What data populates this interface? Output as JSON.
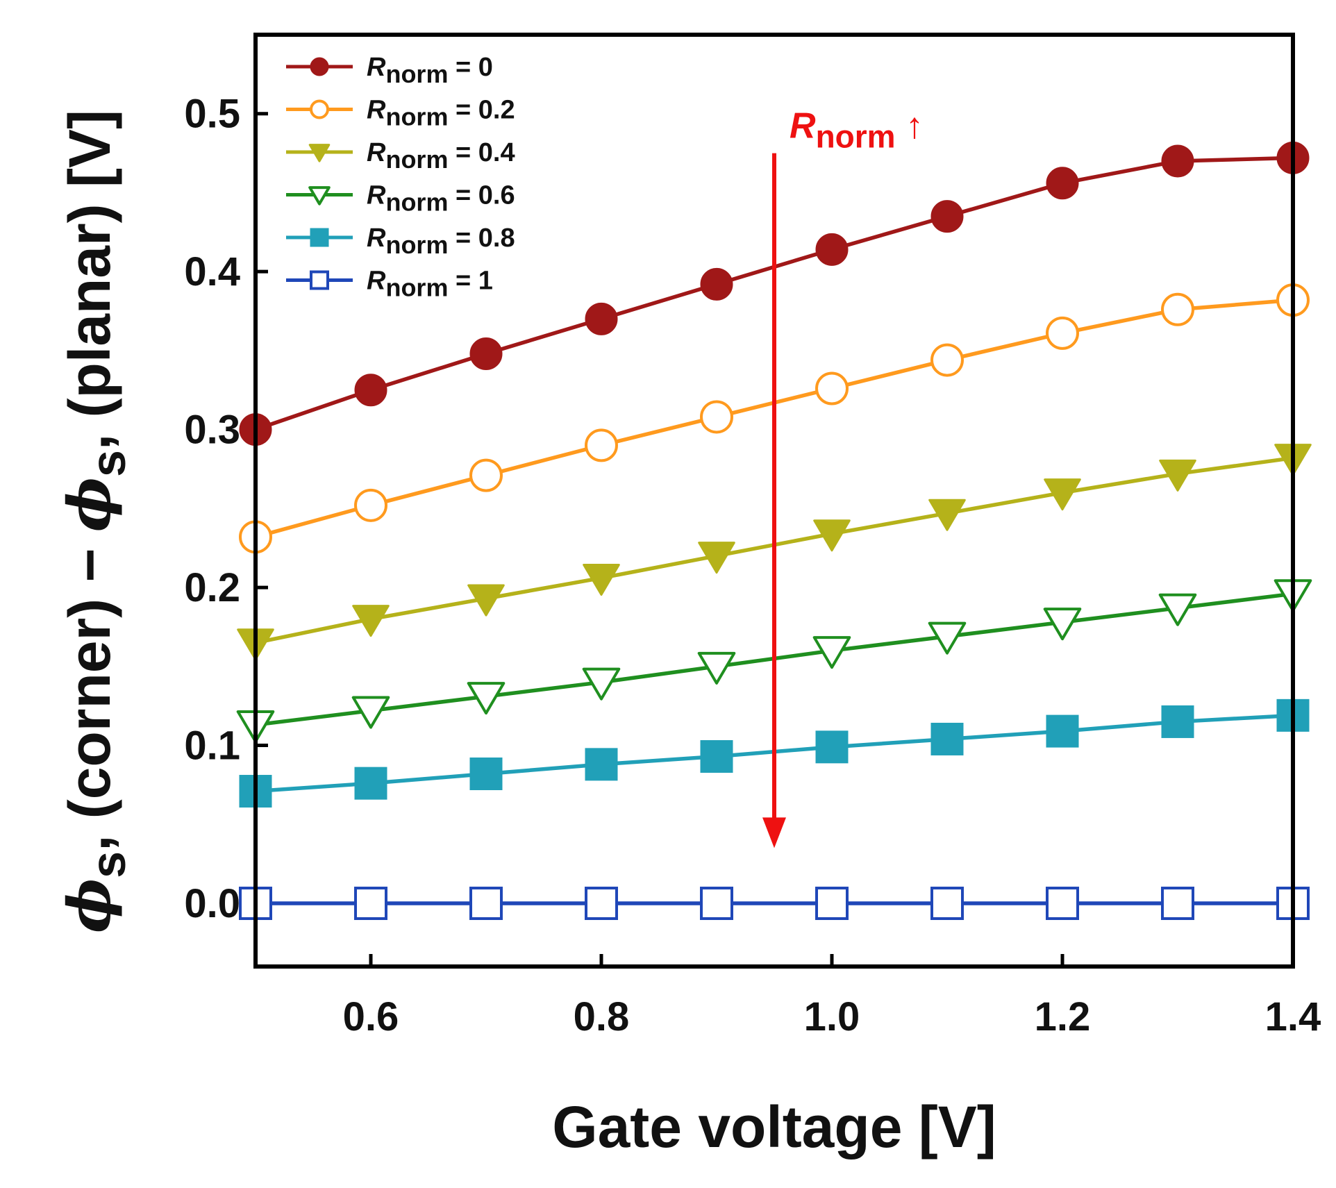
{
  "chart_data": {
    "type": "line",
    "title": "",
    "xlabel": "Gate voltage [V]",
    "ylabel": {
      "phi": "ϕ",
      "s1": "s",
      "part1": ", (corner) − ",
      "phi2": "ϕ",
      "s2": "s",
      "part2": ", (planar) [V]"
    },
    "xlim": [
      0.5,
      1.4
    ],
    "ylim": [
      -0.04,
      0.55
    ],
    "x_ticks": [
      "0.6",
      "0.8",
      "1.0",
      "1.2",
      "1.4"
    ],
    "x_tick_values": [
      0.6,
      0.8,
      1.0,
      1.2,
      1.4
    ],
    "y_ticks": [
      "0.0",
      "0.1",
      "0.2",
      "0.3",
      "0.4",
      "0.5"
    ],
    "y_tick_values": [
      0.0,
      0.1,
      0.2,
      0.3,
      0.4,
      0.5
    ],
    "x": [
      0.5,
      0.6,
      0.7,
      0.8,
      0.9,
      1.0,
      1.1,
      1.2,
      1.3,
      1.4
    ],
    "legend_position": "top-left",
    "series": [
      {
        "name_italic": "R",
        "name_sub": "norm",
        "name_rest": " = 0",
        "color": "#a01818",
        "marker": "circle",
        "filled": true,
        "values": [
          0.3,
          0.325,
          0.348,
          0.37,
          0.392,
          0.414,
          0.435,
          0.456,
          0.47,
          0.472
        ]
      },
      {
        "name_italic": "R",
        "name_sub": "norm",
        "name_rest": " = 0.2",
        "color": "#ff9a1e",
        "marker": "circle",
        "filled": false,
        "values": [
          0.232,
          0.252,
          0.271,
          0.29,
          0.308,
          0.326,
          0.344,
          0.361,
          0.376,
          0.382
        ]
      },
      {
        "name_italic": "R",
        "name_sub": "norm",
        "name_rest": " = 0.4",
        "color": "#b5b21a",
        "marker": "triangle-down",
        "filled": true,
        "values": [
          0.165,
          0.18,
          0.193,
          0.206,
          0.22,
          0.234,
          0.247,
          0.26,
          0.272,
          0.282
        ]
      },
      {
        "name_italic": "R",
        "name_sub": "norm",
        "name_rest": " = 0.6",
        "color": "#1f8f1f",
        "marker": "triangle-down",
        "filled": false,
        "values": [
          0.113,
          0.122,
          0.131,
          0.14,
          0.15,
          0.16,
          0.169,
          0.178,
          0.187,
          0.196
        ]
      },
      {
        "name_italic": "R",
        "name_sub": "norm",
        "name_rest": " = 0.8",
        "color": "#21a0b8",
        "marker": "square",
        "filled": true,
        "values": [
          0.071,
          0.076,
          0.082,
          0.088,
          0.093,
          0.099,
          0.104,
          0.109,
          0.115,
          0.119
        ]
      },
      {
        "name_italic": "R",
        "name_sub": "norm",
        "name_rest": " = 1",
        "color": "#1f47b8",
        "marker": "square",
        "filled": false,
        "values": [
          0.0,
          0.0,
          0.0,
          0.0,
          0.0,
          0.0,
          0.0,
          0.0,
          0.0,
          0.0
        ]
      }
    ],
    "annotation": {
      "italic": "R",
      "sub": "norm",
      "arrow_glyph": " ↑",
      "color": "#ee1111",
      "arrow_x": 0.95,
      "arrow_y_from": 0.475,
      "arrow_y_to": 0.035
    }
  }
}
